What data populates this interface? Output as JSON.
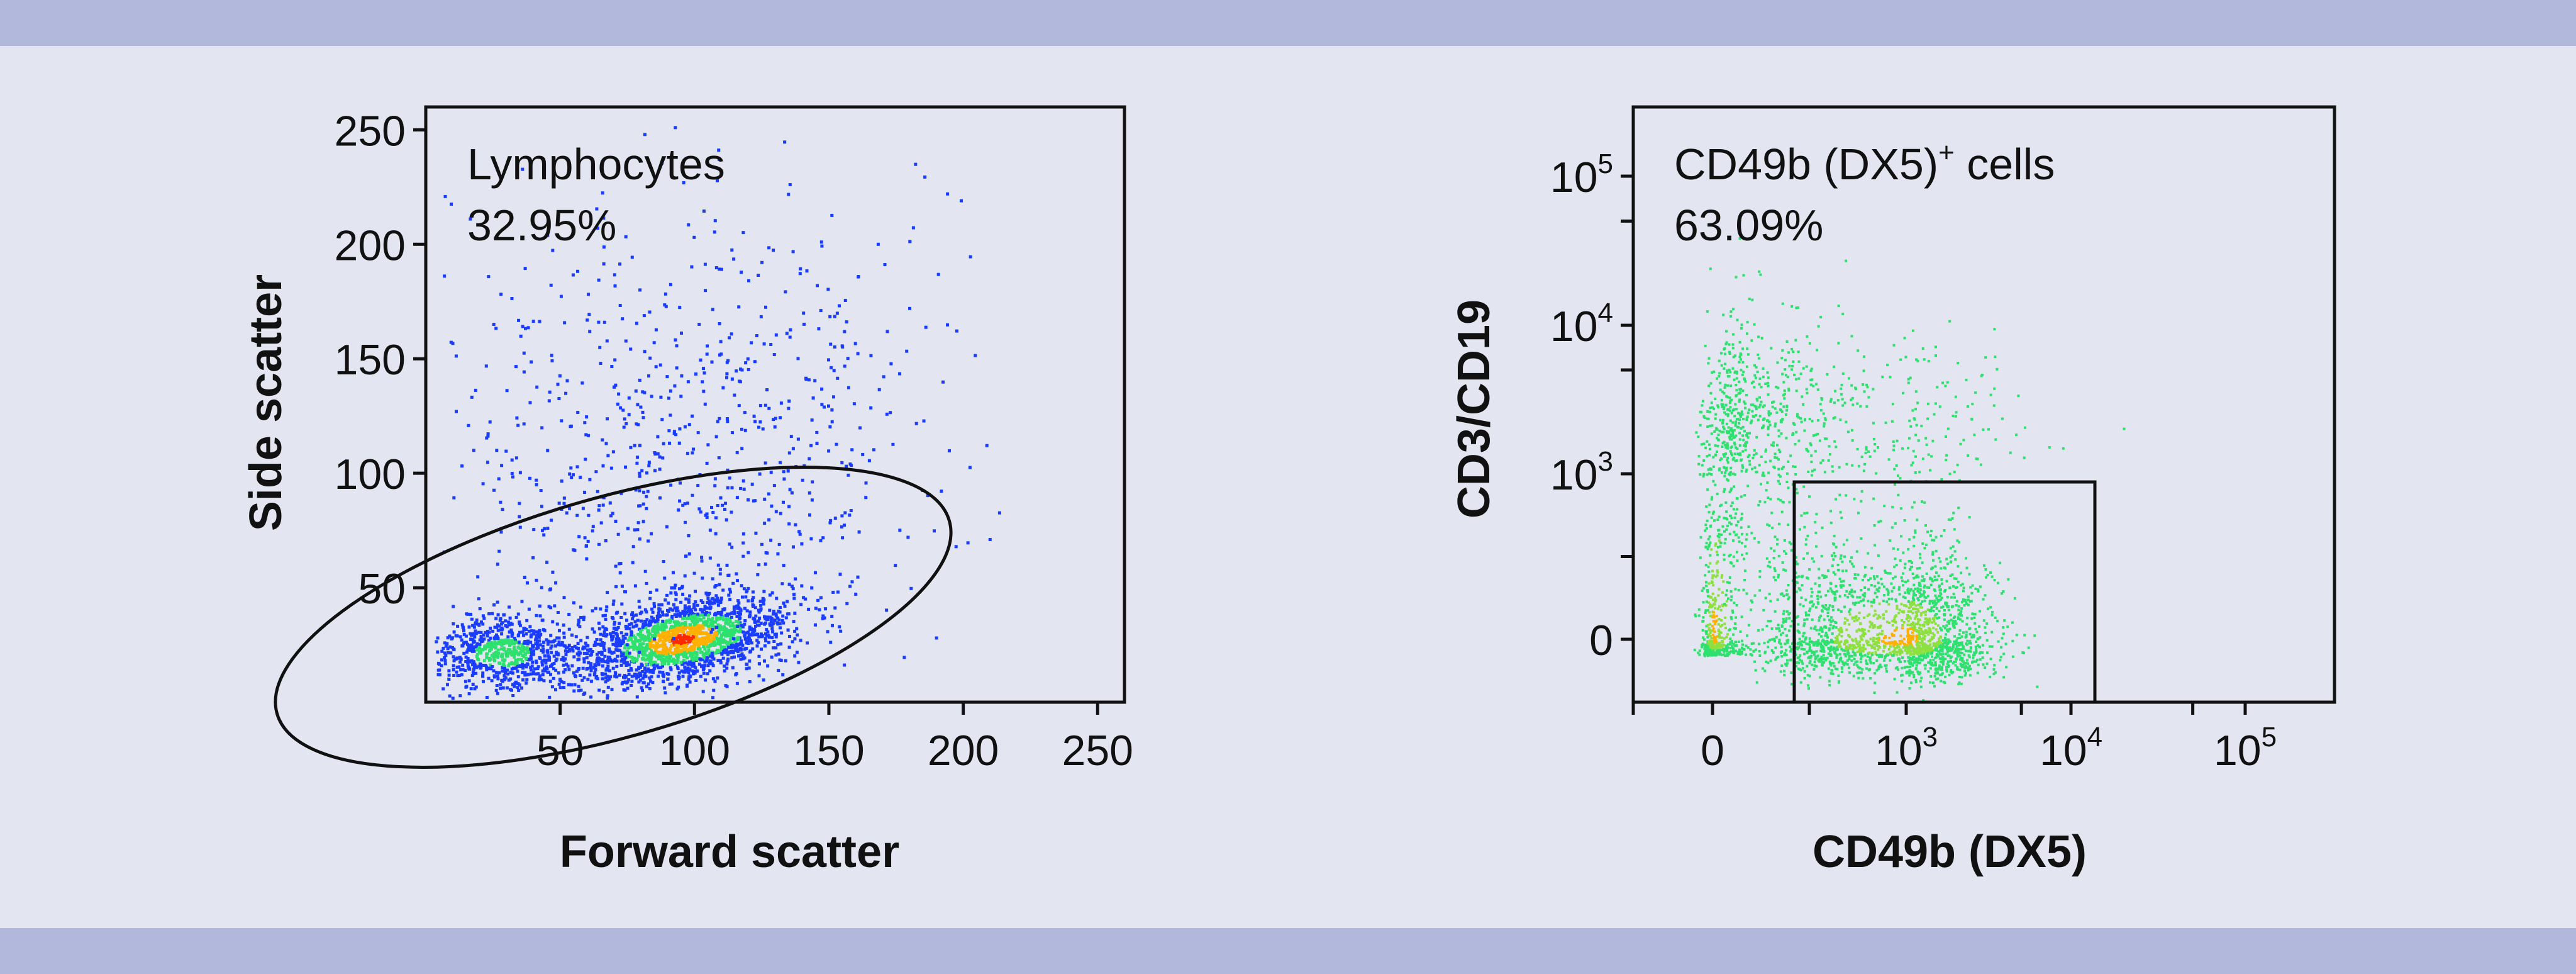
{
  "colors": {
    "background": "#e3e6f1",
    "band": "#b1b8dc",
    "density_low": "#1a3cff",
    "density_mid": "#2ee06e",
    "density_high": "#ffb000",
    "density_peak": "#ff2a00"
  },
  "chart_data": [
    {
      "type": "scatter",
      "subtype": "flow-cytometry-density-dot-plot",
      "xlabel": "Forward scatter",
      "ylabel": "Side scatter",
      "xlim": [
        0,
        260
      ],
      "ylim": [
        0,
        260
      ],
      "x_ticks": [
        "50",
        "100",
        "150",
        "200",
        "250"
      ],
      "y_ticks": [
        "50",
        "100",
        "150",
        "200",
        "250"
      ],
      "gate": {
        "shape": "ellipse",
        "label": "Lymphocytes",
        "value": "32.95%",
        "center": [
          125,
          38
        ],
        "semi_axes": [
          75,
          38
        ],
        "angle_deg": 16
      },
      "populations": [
        {
          "name": "",
          "center": [
            95,
            28
          ],
          "spread": [
            20,
            9
          ],
          "count": 1800
        },
        {
          "name": "",
          "center": [
            28,
            22
          ],
          "spread": [
            14,
            8
          ],
          "count": 700
        },
        {
          "name": "",
          "center": [
            95,
            110
          ],
          "spread": [
            45,
            55
          ],
          "count": 800
        }
      ]
    },
    {
      "type": "scatter",
      "subtype": "flow-cytometry-density-dot-plot",
      "xlabel": "CD49b (DX5)",
      "ylabel": "CD3/CD19",
      "x_scale": "biexponential",
      "y_scale": "biexponential",
      "xlim": [
        -1000,
        400000
      ],
      "ylim": [
        -1000,
        300000
      ],
      "x_ticks": [
        {
          "base": "0",
          "exp": ""
        },
        {
          "base": "10",
          "exp": "3"
        },
        {
          "base": "10",
          "exp": "4"
        },
        {
          "base": "10",
          "exp": "5"
        }
      ],
      "y_ticks": [
        {
          "base": "0",
          "exp": ""
        },
        {
          "base": "10",
          "exp": "3"
        },
        {
          "base": "10",
          "exp": "4"
        },
        {
          "base": "10",
          "exp": "5"
        }
      ],
      "gate": {
        "shape": "rectangle",
        "label": "CD49b (DX5)",
        "label_sup": "+",
        "label_suffix": " cells",
        "value": "63.09%",
        "x_range": [
          250,
          13000
        ],
        "y_range": [
          -1000,
          900
        ]
      },
      "populations": [
        {
          "name": "",
          "center": [
            1000,
            0
          ],
          "spread_decades": [
            0.25,
            0.45
          ],
          "count": 2000
        },
        {
          "name": "",
          "center": [
            0,
            300
          ],
          "spread_decades": [
            0.1,
            0.6
          ],
          "count": 600
        },
        {
          "name": "",
          "center": [
            300,
            2000
          ],
          "spread_decades": [
            0.5,
            0.35
          ],
          "count": 800
        }
      ]
    }
  ]
}
